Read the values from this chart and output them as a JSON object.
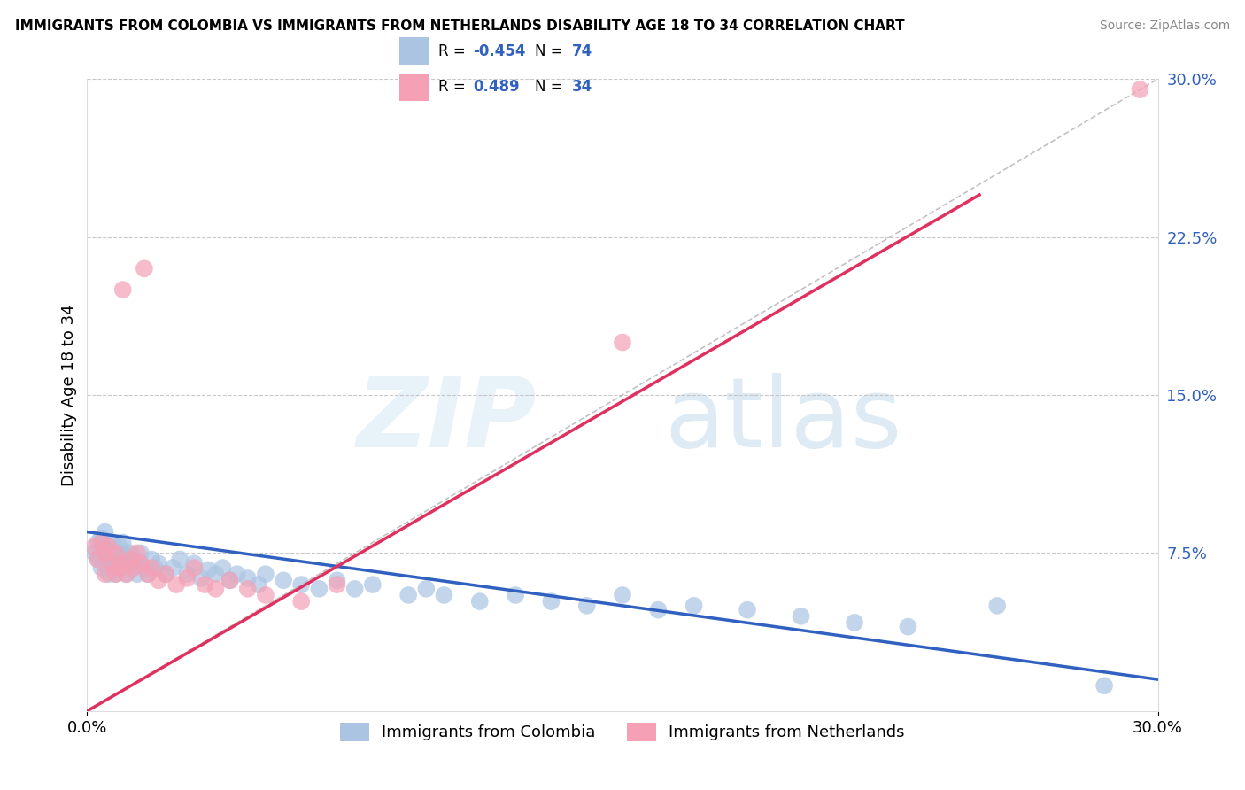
{
  "title": "IMMIGRANTS FROM COLOMBIA VS IMMIGRANTS FROM NETHERLANDS DISABILITY AGE 18 TO 34 CORRELATION CHART",
  "source": "Source: ZipAtlas.com",
  "ylabel": "Disability Age 18 to 34",
  "legend_label_blue": "Immigrants from Colombia",
  "legend_label_pink": "Immigrants from Netherlands",
  "xlim": [
    0.0,
    0.3
  ],
  "ylim": [
    0.0,
    0.3
  ],
  "x_tick_labels": [
    "0.0%",
    "30.0%"
  ],
  "y_tick_labels_right": [
    "7.5%",
    "15.0%",
    "22.5%",
    "30.0%"
  ],
  "y_ticks_right": [
    0.075,
    0.15,
    0.225,
    0.3
  ],
  "blue_R": -0.454,
  "blue_N": 74,
  "pink_R": 0.489,
  "pink_N": 34,
  "blue_color": "#aac4e2",
  "pink_color": "#f5a0b5",
  "blue_line_color": "#3060c0",
  "pink_line_color": "#e03060",
  "text_color_blue": "#3060c0",
  "blue_line_x0": 0.0,
  "blue_line_y0": 0.085,
  "blue_line_x1": 0.3,
  "blue_line_y1": 0.015,
  "pink_line_x0": 0.0,
  "pink_line_y0": 0.0,
  "pink_line_x1": 0.25,
  "pink_line_y1": 0.245,
  "blue_scatter_x": [
    0.002,
    0.003,
    0.003,
    0.004,
    0.004,
    0.004,
    0.005,
    0.005,
    0.005,
    0.005,
    0.006,
    0.006,
    0.006,
    0.007,
    0.007,
    0.007,
    0.008,
    0.008,
    0.008,
    0.009,
    0.009,
    0.01,
    0.01,
    0.01,
    0.011,
    0.011,
    0.012,
    0.012,
    0.013,
    0.013,
    0.014,
    0.015,
    0.015,
    0.016,
    0.017,
    0.018,
    0.019,
    0.02,
    0.022,
    0.024,
    0.026,
    0.028,
    0.03,
    0.032,
    0.034,
    0.036,
    0.038,
    0.04,
    0.042,
    0.045,
    0.048,
    0.05,
    0.055,
    0.06,
    0.065,
    0.07,
    0.075,
    0.08,
    0.09,
    0.095,
    0.1,
    0.11,
    0.12,
    0.13,
    0.14,
    0.15,
    0.16,
    0.17,
    0.185,
    0.2,
    0.215,
    0.23,
    0.255,
    0.285
  ],
  "blue_scatter_y": [
    0.075,
    0.08,
    0.072,
    0.078,
    0.068,
    0.082,
    0.075,
    0.08,
    0.07,
    0.085,
    0.078,
    0.072,
    0.065,
    0.075,
    0.08,
    0.068,
    0.075,
    0.07,
    0.065,
    0.078,
    0.072,
    0.075,
    0.068,
    0.08,
    0.072,
    0.065,
    0.075,
    0.07,
    0.068,
    0.072,
    0.065,
    0.07,
    0.075,
    0.068,
    0.065,
    0.072,
    0.068,
    0.07,
    0.065,
    0.068,
    0.072,
    0.065,
    0.07,
    0.063,
    0.067,
    0.065,
    0.068,
    0.062,
    0.065,
    0.063,
    0.06,
    0.065,
    0.062,
    0.06,
    0.058,
    0.062,
    0.058,
    0.06,
    0.055,
    0.058,
    0.055,
    0.052,
    0.055,
    0.052,
    0.05,
    0.055,
    0.048,
    0.05,
    0.048,
    0.045,
    0.042,
    0.04,
    0.05,
    0.012
  ],
  "pink_scatter_x": [
    0.002,
    0.003,
    0.004,
    0.005,
    0.005,
    0.006,
    0.007,
    0.008,
    0.008,
    0.009,
    0.01,
    0.01,
    0.011,
    0.012,
    0.013,
    0.014,
    0.015,
    0.016,
    0.017,
    0.018,
    0.02,
    0.022,
    0.025,
    0.028,
    0.03,
    0.033,
    0.036,
    0.04,
    0.045,
    0.05,
    0.06,
    0.07,
    0.15,
    0.295
  ],
  "pink_scatter_y": [
    0.078,
    0.072,
    0.08,
    0.075,
    0.065,
    0.078,
    0.07,
    0.065,
    0.075,
    0.068,
    0.2,
    0.07,
    0.065,
    0.072,
    0.068,
    0.075,
    0.07,
    0.21,
    0.065,
    0.068,
    0.062,
    0.065,
    0.06,
    0.063,
    0.068,
    0.06,
    0.058,
    0.062,
    0.058,
    0.055,
    0.052,
    0.06,
    0.175,
    0.295
  ]
}
